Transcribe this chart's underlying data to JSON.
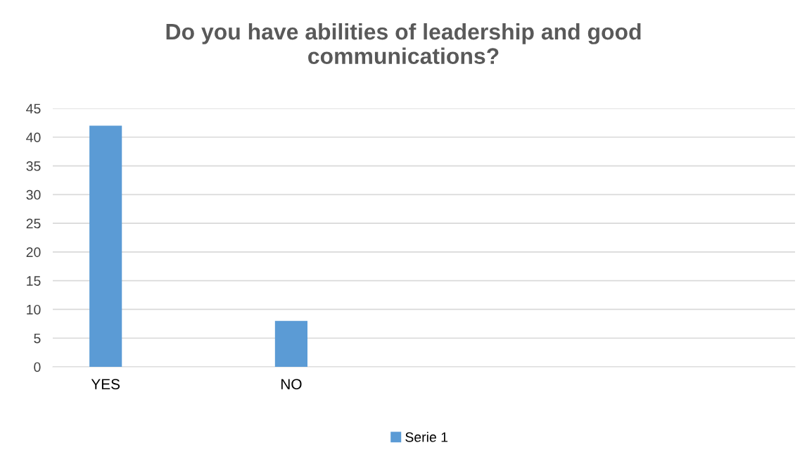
{
  "chart_data": {
    "type": "bar",
    "title": "Do you have abilities of leadership and good\ncommunications?",
    "categories": [
      "YES",
      "NO",
      null,
      null
    ],
    "series": [
      {
        "name": "Serie 1",
        "color": "#5b9bd5",
        "values": [
          42,
          8,
          null,
          null
        ]
      }
    ],
    "ylim": [
      0,
      45
    ],
    "yticks": [
      0,
      5,
      10,
      15,
      20,
      25,
      30,
      35,
      40,
      45
    ],
    "grid": "y",
    "legend": "bottom"
  }
}
